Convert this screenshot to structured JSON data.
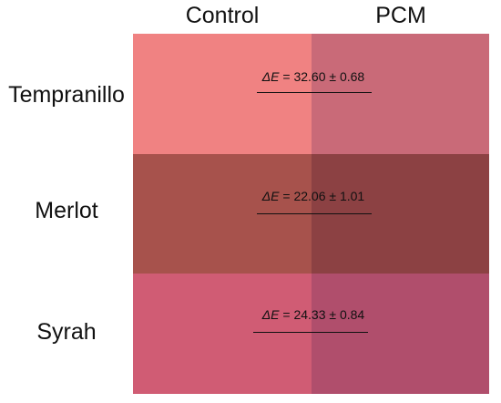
{
  "columns": [
    "Control",
    "PCM"
  ],
  "rows": [
    {
      "label": "Tempranillo",
      "control_color": "#f08282",
      "pcm_color": "#c96a78",
      "delta_symbol": "ΔE",
      "delta_value": "= 32.60 ± 0.68"
    },
    {
      "label": "Merlot",
      "control_color": "#a7524c",
      "pcm_color": "#8c4143",
      "delta_symbol": "ΔE",
      "delta_value": "= 22.06 ± 1.01"
    },
    {
      "label": "Syrah",
      "control_color": "#d05c74",
      "pcm_color": "#b04e6c",
      "delta_symbol": "ΔE",
      "delta_value": "= 24.33 ± 0.84"
    }
  ]
}
